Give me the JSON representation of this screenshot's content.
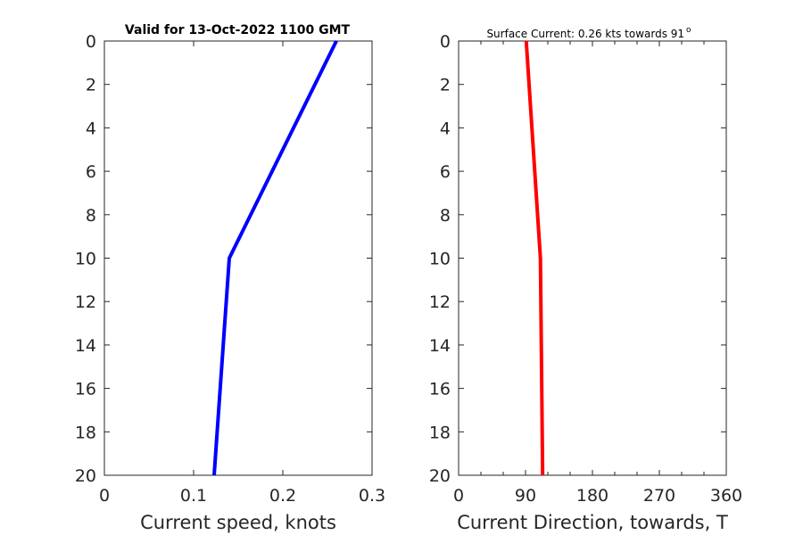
{
  "chart_data": [
    {
      "type": "line",
      "title": "Valid for 13-Oct-2022 1100 GMT",
      "xlabel": "Current speed, knots",
      "ylabel": "",
      "xlim": [
        0,
        0.3
      ],
      "ylim": [
        0,
        20
      ],
      "y_reversed": true,
      "xticks": [
        "0",
        "0.1",
        "0.2",
        "0.3"
      ],
      "yticks": [
        "0",
        "2",
        "4",
        "6",
        "8",
        "10",
        "12",
        "14",
        "16",
        "18",
        "20"
      ],
      "grid": false,
      "color": "#0000ff",
      "x": [
        0.26,
        0.14,
        0.123
      ],
      "y": [
        0,
        10,
        20
      ]
    },
    {
      "type": "line",
      "title": "Surface Current: 0.26 kts towards 91",
      "title_superscript": "o",
      "xlabel": "Current Direction, towards, T",
      "ylabel": "",
      "xlim": [
        0,
        360
      ],
      "ylim": [
        0,
        20
      ],
      "y_reversed": true,
      "xticks": [
        "0",
        "90",
        "180",
        "270",
        "360"
      ],
      "yticks": [
        "0",
        "2",
        "4",
        "6",
        "8",
        "10",
        "12",
        "14",
        "16",
        "18",
        "20"
      ],
      "grid": false,
      "color": "#ff0000",
      "x": [
        91,
        110,
        113
      ],
      "y": [
        0,
        10,
        20
      ]
    }
  ]
}
